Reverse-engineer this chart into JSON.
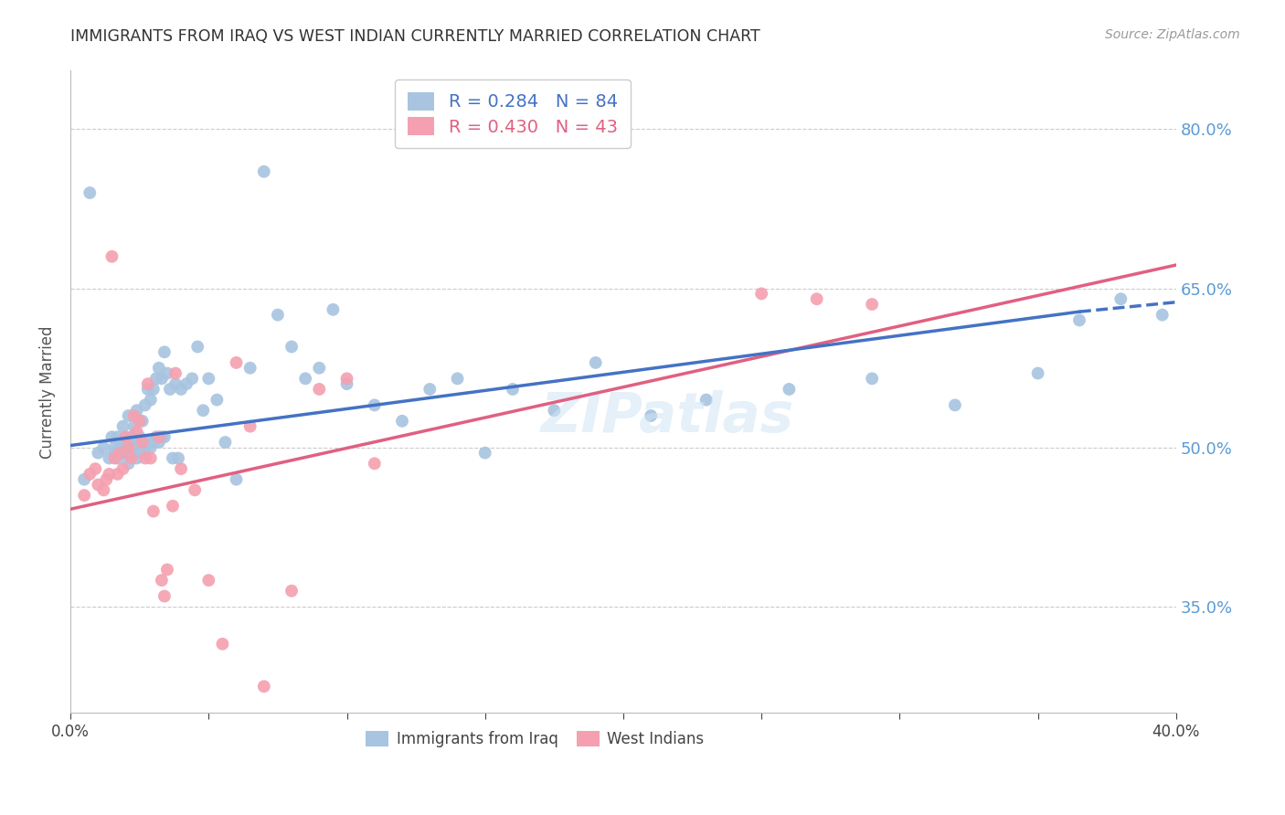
{
  "title": "IMMIGRANTS FROM IRAQ VS WEST INDIAN CURRENTLY MARRIED CORRELATION CHART",
  "source": "Source: ZipAtlas.com",
  "ylabel": "Currently Married",
  "ytick_labels": [
    "35.0%",
    "50.0%",
    "65.0%",
    "80.0%"
  ],
  "ytick_values": [
    0.35,
    0.5,
    0.65,
    0.8
  ],
  "xlim": [
    0.0,
    0.4
  ],
  "ylim": [
    0.25,
    0.855
  ],
  "legend_iraq_R": "R = 0.284",
  "legend_iraq_N": "N = 84",
  "legend_wi_R": "R = 0.430",
  "legend_wi_N": "N = 43",
  "iraq_color": "#a8c4e0",
  "wi_color": "#f4a0b0",
  "iraq_line_color": "#4472c4",
  "wi_line_color": "#e06080",
  "title_color": "#333333",
  "source_color": "#999999",
  "ytick_color": "#5b9bd5",
  "grid_color": "#cccccc",
  "background": "#ffffff",
  "iraq_line_x0": 0.0,
  "iraq_line_x1": 0.365,
  "iraq_line_x2": 0.4,
  "iraq_line_y0": 0.502,
  "iraq_line_y1": 0.628,
  "iraq_line_y2": 0.637,
  "wi_line_x0": 0.0,
  "wi_line_x1": 0.4,
  "wi_line_y0": 0.442,
  "wi_line_y1": 0.672,
  "iraq_x": [
    0.005,
    0.007,
    0.01,
    0.012,
    0.014,
    0.015,
    0.016,
    0.016,
    0.017,
    0.017,
    0.018,
    0.018,
    0.019,
    0.019,
    0.02,
    0.02,
    0.021,
    0.021,
    0.022,
    0.022,
    0.022,
    0.023,
    0.023,
    0.024,
    0.024,
    0.025,
    0.025,
    0.026,
    0.026,
    0.027,
    0.027,
    0.028,
    0.028,
    0.029,
    0.029,
    0.03,
    0.03,
    0.031,
    0.031,
    0.032,
    0.032,
    0.033,
    0.033,
    0.034,
    0.034,
    0.035,
    0.036,
    0.037,
    0.038,
    0.039,
    0.04,
    0.042,
    0.044,
    0.046,
    0.048,
    0.05,
    0.053,
    0.056,
    0.06,
    0.065,
    0.07,
    0.075,
    0.08,
    0.085,
    0.09,
    0.095,
    0.1,
    0.11,
    0.12,
    0.13,
    0.14,
    0.15,
    0.16,
    0.175,
    0.19,
    0.21,
    0.23,
    0.26,
    0.29,
    0.32,
    0.35,
    0.365,
    0.38,
    0.395
  ],
  "iraq_y": [
    0.47,
    0.74,
    0.495,
    0.5,
    0.49,
    0.51,
    0.5,
    0.495,
    0.51,
    0.49,
    0.505,
    0.5,
    0.52,
    0.495,
    0.51,
    0.495,
    0.53,
    0.485,
    0.51,
    0.505,
    0.495,
    0.52,
    0.5,
    0.535,
    0.49,
    0.51,
    0.5,
    0.525,
    0.495,
    0.54,
    0.5,
    0.555,
    0.505,
    0.545,
    0.5,
    0.555,
    0.505,
    0.565,
    0.51,
    0.575,
    0.505,
    0.565,
    0.51,
    0.59,
    0.51,
    0.57,
    0.555,
    0.49,
    0.56,
    0.49,
    0.555,
    0.56,
    0.565,
    0.595,
    0.535,
    0.565,
    0.545,
    0.505,
    0.47,
    0.575,
    0.76,
    0.625,
    0.595,
    0.565,
    0.575,
    0.63,
    0.56,
    0.54,
    0.525,
    0.555,
    0.565,
    0.495,
    0.555,
    0.535,
    0.58,
    0.53,
    0.545,
    0.555,
    0.565,
    0.54,
    0.57,
    0.62,
    0.64,
    0.625
  ],
  "wi_x": [
    0.005,
    0.007,
    0.009,
    0.01,
    0.012,
    0.013,
    0.014,
    0.015,
    0.016,
    0.017,
    0.018,
    0.019,
    0.02,
    0.021,
    0.022,
    0.023,
    0.024,
    0.025,
    0.026,
    0.027,
    0.028,
    0.029,
    0.03,
    0.032,
    0.033,
    0.034,
    0.035,
    0.037,
    0.038,
    0.04,
    0.045,
    0.05,
    0.055,
    0.06,
    0.065,
    0.07,
    0.08,
    0.09,
    0.1,
    0.11,
    0.25,
    0.27,
    0.29
  ],
  "wi_y": [
    0.455,
    0.475,
    0.48,
    0.465,
    0.46,
    0.47,
    0.475,
    0.68,
    0.49,
    0.475,
    0.495,
    0.48,
    0.51,
    0.5,
    0.49,
    0.53,
    0.515,
    0.525,
    0.505,
    0.49,
    0.56,
    0.49,
    0.44,
    0.51,
    0.375,
    0.36,
    0.385,
    0.445,
    0.57,
    0.48,
    0.46,
    0.375,
    0.315,
    0.58,
    0.52,
    0.275,
    0.365,
    0.555,
    0.565,
    0.485,
    0.645,
    0.64,
    0.635
  ]
}
